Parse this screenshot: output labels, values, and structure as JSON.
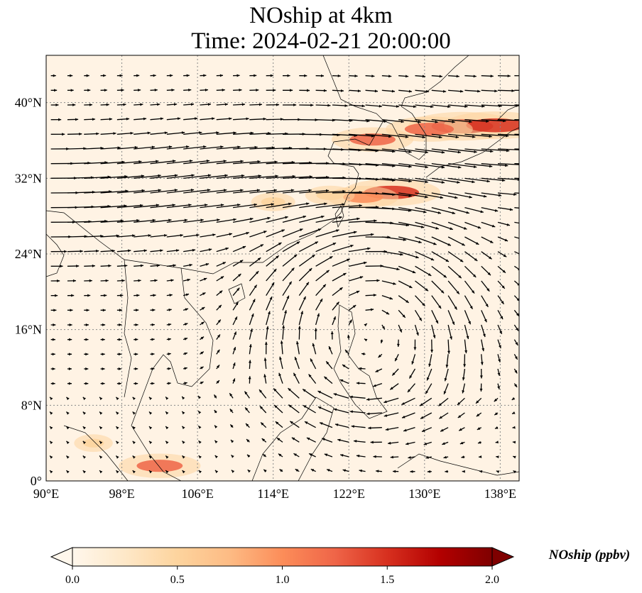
{
  "title": {
    "line1": "NOship at 4km",
    "line2": "Time: 2024-02-21 20:00:00"
  },
  "map": {
    "variable": "NOship",
    "level": "4km",
    "time": "2024-02-21 20:00:00",
    "lon_range": [
      90,
      140
    ],
    "lat_range": [
      0,
      45
    ],
    "lon_ticks": [
      "90°E",
      "98°E",
      "106°E",
      "114°E",
      "122°E",
      "130°E",
      "138°E"
    ],
    "lon_tick_values": [
      90,
      98,
      106,
      114,
      122,
      130,
      138
    ],
    "lat_ticks": [
      "0°",
      "8°N",
      "16°N",
      "24°N",
      "32°N",
      "40°N"
    ],
    "lat_tick_values": [
      0,
      8,
      16,
      24,
      32,
      40
    ],
    "gridlines": true,
    "hotspots": [
      {
        "lon": 134,
        "lat": 37.5,
        "value": 1.7
      },
      {
        "lon": 137.5,
        "lat": 37.6,
        "value": 1.6
      },
      {
        "lon": 130.5,
        "lat": 37.2,
        "value": 1.3
      },
      {
        "lon": 124.5,
        "lat": 36.1,
        "value": 1.2
      },
      {
        "lon": 126.5,
        "lat": 30.5,
        "value": 1.5
      },
      {
        "lon": 123.5,
        "lat": 30.0,
        "value": 1.0
      },
      {
        "lon": 120,
        "lat": 30.2,
        "value": 0.6
      },
      {
        "lon": 114,
        "lat": 29.5,
        "value": 0.5
      },
      {
        "lon": 102,
        "lat": 1.6,
        "value": 1.2
      },
      {
        "lon": 95,
        "lat": 4.0,
        "value": 0.4
      }
    ],
    "colors": {
      "land_outline": "#000000",
      "gridline": "#888888",
      "arrow": "#000000",
      "background_low": "#fff5eb"
    }
  },
  "colorbar": {
    "label": "NOship (ppbv)",
    "min": 0.0,
    "max": 2.0,
    "ticks": [
      "0.0",
      "0.5",
      "1.0",
      "1.5",
      "2.0"
    ],
    "tick_values": [
      0.0,
      0.5,
      1.0,
      1.5,
      2.0
    ],
    "extend": "both",
    "colormap": "OrRd",
    "stops": [
      "#fff7ec",
      "#fee8c8",
      "#fdd49e",
      "#fdbb84",
      "#fc8d59",
      "#ef6548",
      "#d7301f",
      "#b30000",
      "#7f0000"
    ]
  }
}
